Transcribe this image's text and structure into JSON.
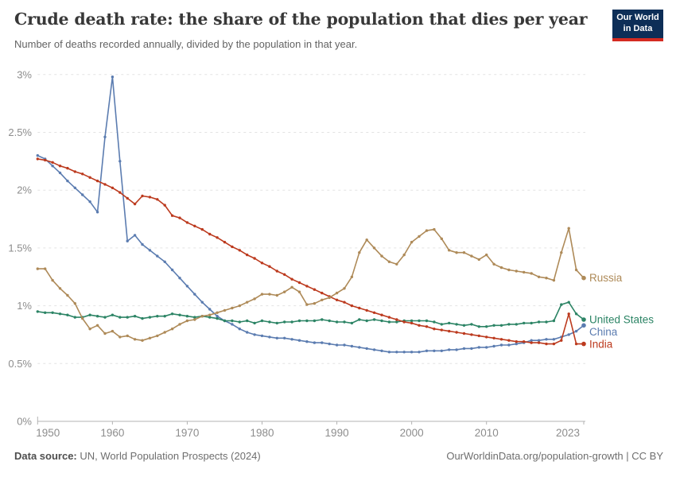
{
  "header": {
    "title": "Crude death rate: the share of the population that dies per year",
    "subtitle": "Number of deaths recorded annually, divided by the population in that year."
  },
  "logo": {
    "line1": "Our World",
    "line2": "in Data",
    "bg_color": "#0d2e57",
    "accent_color": "#d42b21"
  },
  "footer": {
    "source_label": "Data source:",
    "source_text": " UN, World Population Prospects (2024)",
    "credit": "OurWorldinData.org/population-growth | CC BY"
  },
  "chart_data": {
    "type": "line",
    "title": "Crude death rate: the share of the population that dies per year",
    "xlabel": "",
    "ylabel": "",
    "unit": "%",
    "grid": true,
    "legend_position": "end-of-line",
    "x_range": [
      1950,
      2023
    ],
    "ylim": [
      0,
      3
    ],
    "x_ticks": [
      {
        "year": 1950,
        "label": "1950"
      },
      {
        "year": 1960,
        "label": "1960"
      },
      {
        "year": 1970,
        "label": "1970"
      },
      {
        "year": 1980,
        "label": "1980"
      },
      {
        "year": 1990,
        "label": "1990"
      },
      {
        "year": 2000,
        "label": "2000"
      },
      {
        "year": 2010,
        "label": "2010"
      },
      {
        "year": 2023,
        "label": "2023"
      }
    ],
    "y_ticks": [
      {
        "value": 0,
        "label": "0%"
      },
      {
        "value": 0.5,
        "label": "0.5%"
      },
      {
        "value": 1,
        "label": "1%"
      },
      {
        "value": 1.5,
        "label": "1.5%"
      },
      {
        "value": 2,
        "label": "2%"
      },
      {
        "value": 2.5,
        "label": "2.5%"
      },
      {
        "value": 3,
        "label": "3%"
      }
    ],
    "series": [
      {
        "name": "China",
        "color": "#5b7cb0",
        "start_year": 1950,
        "values": [
          2.3,
          2.27,
          2.21,
          2.15,
          2.08,
          2.02,
          1.96,
          1.9,
          1.81,
          2.46,
          2.98,
          2.25,
          1.56,
          1.61,
          1.53,
          1.48,
          1.43,
          1.38,
          1.31,
          1.24,
          1.17,
          1.1,
          1.03,
          0.97,
          0.91,
          0.87,
          0.84,
          0.8,
          0.77,
          0.75,
          0.74,
          0.73,
          0.72,
          0.72,
          0.71,
          0.7,
          0.69,
          0.68,
          0.68,
          0.67,
          0.66,
          0.66,
          0.65,
          0.64,
          0.63,
          0.62,
          0.61,
          0.6,
          0.6,
          0.6,
          0.6,
          0.6,
          0.61,
          0.61,
          0.61,
          0.62,
          0.62,
          0.63,
          0.63,
          0.64,
          0.64,
          0.65,
          0.66,
          0.66,
          0.67,
          0.68,
          0.7,
          0.7,
          0.71,
          0.71,
          0.73,
          0.75,
          0.78,
          0.83
        ]
      },
      {
        "name": "United States",
        "color": "#2c8465",
        "start_year": 1950,
        "values": [
          0.95,
          0.94,
          0.94,
          0.93,
          0.92,
          0.9,
          0.9,
          0.92,
          0.91,
          0.9,
          0.92,
          0.9,
          0.9,
          0.91,
          0.89,
          0.9,
          0.91,
          0.91,
          0.93,
          0.92,
          0.91,
          0.9,
          0.91,
          0.9,
          0.89,
          0.87,
          0.87,
          0.86,
          0.87,
          0.85,
          0.87,
          0.86,
          0.85,
          0.86,
          0.86,
          0.87,
          0.87,
          0.87,
          0.88,
          0.87,
          0.86,
          0.86,
          0.85,
          0.88,
          0.87,
          0.88,
          0.87,
          0.86,
          0.86,
          0.87,
          0.87,
          0.87,
          0.87,
          0.86,
          0.84,
          0.85,
          0.84,
          0.83,
          0.84,
          0.82,
          0.82,
          0.83,
          0.83,
          0.84,
          0.84,
          0.85,
          0.85,
          0.86,
          0.86,
          0.87,
          1.01,
          1.03,
          0.93,
          0.88
        ]
      },
      {
        "name": "India",
        "color": "#bc3a1e",
        "start_year": 1950,
        "values": [
          2.27,
          2.26,
          2.24,
          2.21,
          2.19,
          2.16,
          2.14,
          2.11,
          2.08,
          2.05,
          2.02,
          1.98,
          1.93,
          1.88,
          1.95,
          1.94,
          1.92,
          1.87,
          1.78,
          1.76,
          1.72,
          1.69,
          1.66,
          1.62,
          1.59,
          1.55,
          1.51,
          1.48,
          1.44,
          1.41,
          1.37,
          1.34,
          1.3,
          1.27,
          1.23,
          1.2,
          1.17,
          1.14,
          1.11,
          1.08,
          1.05,
          1.03,
          1.0,
          0.98,
          0.96,
          0.94,
          0.92,
          0.9,
          0.88,
          0.86,
          0.85,
          0.83,
          0.82,
          0.8,
          0.79,
          0.78,
          0.77,
          0.76,
          0.75,
          0.74,
          0.73,
          0.72,
          0.71,
          0.7,
          0.69,
          0.69,
          0.68,
          0.68,
          0.67,
          0.67,
          0.7,
          0.93,
          0.67,
          0.67
        ]
      },
      {
        "name": "Russia",
        "color": "#ae8a58",
        "start_year": 1950,
        "values": [
          1.32,
          1.32,
          1.22,
          1.15,
          1.09,
          1.02,
          0.89,
          0.8,
          0.83,
          0.76,
          0.78,
          0.73,
          0.74,
          0.71,
          0.7,
          0.72,
          0.74,
          0.77,
          0.8,
          0.84,
          0.87,
          0.88,
          0.91,
          0.92,
          0.94,
          0.96,
          0.98,
          1.0,
          1.03,
          1.06,
          1.1,
          1.1,
          1.09,
          1.12,
          1.16,
          1.12,
          1.01,
          1.02,
          1.05,
          1.07,
          1.11,
          1.15,
          1.25,
          1.46,
          1.57,
          1.5,
          1.43,
          1.38,
          1.36,
          1.44,
          1.55,
          1.6,
          1.65,
          1.66,
          1.58,
          1.48,
          1.46,
          1.46,
          1.43,
          1.4,
          1.44,
          1.36,
          1.33,
          1.31,
          1.3,
          1.29,
          1.28,
          1.25,
          1.24,
          1.22,
          1.46,
          1.67,
          1.31,
          1.24
        ]
      }
    ]
  }
}
